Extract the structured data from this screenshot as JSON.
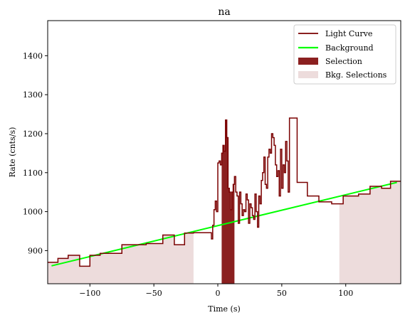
{
  "chart_data": {
    "type": "line",
    "title": "na",
    "xlabel": "Time (s)",
    "ylabel": "Rate (cnts/s)",
    "xlim": [
      -133,
      143
    ],
    "ylim": [
      815,
      1490
    ],
    "xticks": [
      -100,
      -50,
      0,
      50,
      100
    ],
    "xtick_labels": [
      "−100",
      "−50",
      "0",
      "50",
      "100"
    ],
    "yticks": [
      900,
      1000,
      1100,
      1200,
      1300,
      1400
    ],
    "ytick_labels": [
      "900",
      "1000",
      "1100",
      "1200",
      "1300",
      "1400"
    ],
    "grid": false,
    "legend_position": "top-right",
    "colors": {
      "light_curve": "#7a0000",
      "background": "#00ff00",
      "selection": "#8b2020",
      "bkg_selection": "#eddcdc"
    },
    "legend": [
      "Light Curve",
      "Background",
      "Selection",
      "Bkg. Selections"
    ],
    "bkg_selections": [
      [
        -133,
        -19
      ],
      [
        95,
        143
      ]
    ],
    "selection": [
      3,
      13
    ],
    "background": {
      "x": [
        -130,
        140
      ],
      "y": [
        861,
        1075
      ]
    },
    "light_curve": {
      "x": [
        -133,
        -125,
        -117,
        -108,
        -100,
        -92,
        -75,
        -56,
        -43,
        -34,
        -26,
        -19,
        -5,
        -4,
        -3,
        -2,
        -1,
        0,
        1,
        2,
        3,
        4,
        5,
        6,
        7,
        8,
        9,
        10,
        11,
        12,
        13,
        14,
        15,
        16,
        17,
        18,
        19,
        20,
        21,
        22,
        23,
        24,
        25,
        26,
        27,
        28,
        29,
        30,
        31,
        32,
        33,
        34,
        35,
        36,
        37,
        38,
        39,
        40,
        41,
        42,
        43,
        44,
        45,
        46,
        47,
        48,
        49,
        50,
        51,
        52,
        53,
        54,
        55,
        56,
        57,
        58,
        59,
        60,
        61,
        62,
        70,
        79,
        89,
        98,
        110,
        119,
        128,
        135,
        143
      ],
      "y": [
        870,
        880,
        888,
        860,
        888,
        893,
        915,
        918,
        940,
        915,
        945,
        946,
        930,
        965,
        1005,
        1027,
        1000,
        1125,
        1130,
        1120,
        1150,
        1170,
        1155,
        1235,
        1190,
        1060,
        1050,
        1005,
        1050,
        1070,
        1090,
        1050,
        1040,
        970,
        1050,
        1020,
        990,
        1005,
        1000,
        1045,
        1030,
        970,
        1020,
        1010,
        990,
        980,
        1045,
        1000,
        960,
        1040,
        1020,
        1080,
        1100,
        1140,
        1070,
        1060,
        1140,
        1160,
        1150,
        1200,
        1190,
        1170,
        1120,
        1090,
        1105,
        1040,
        1160,
        1060,
        1120,
        1100,
        1180,
        1130,
        1050,
        1240,
        1240,
        1240,
        1240,
        1240,
        1240,
        1075,
        1040,
        1025,
        1020,
        1040,
        1045,
        1065,
        1060,
        1078,
        1078
      ]
    }
  }
}
